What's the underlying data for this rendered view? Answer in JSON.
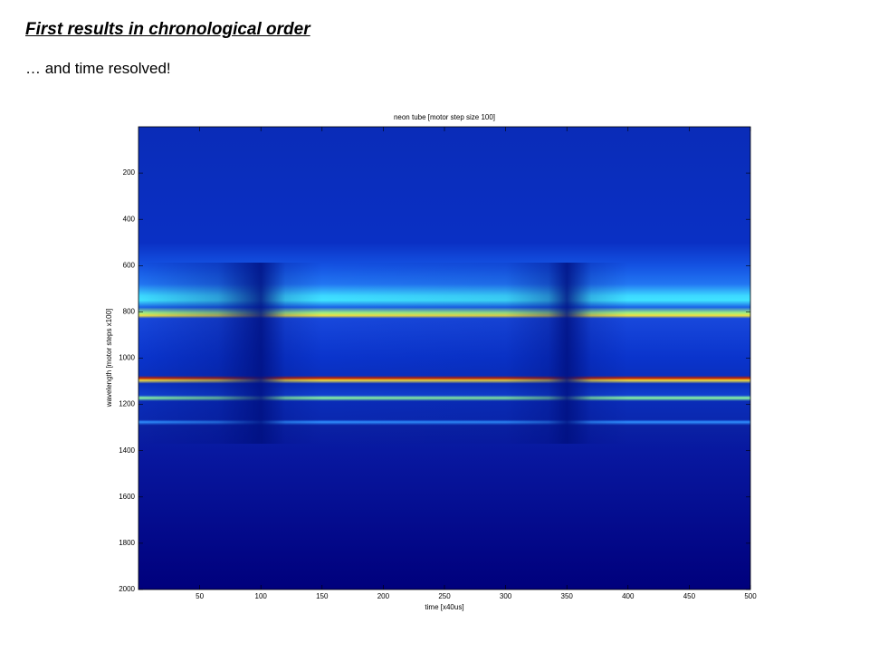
{
  "slide": {
    "title": "First results in chronological order",
    "subtitle": "… and time resolved!"
  },
  "chart_data": {
    "type": "heatmap",
    "title": "neon tube [motor step size 100]",
    "xlabel": "time [x40us]",
    "ylabel": "wavelength [motor steps x100]",
    "xlim": [
      0,
      500
    ],
    "xticks": [
      50,
      100,
      150,
      200,
      250,
      300,
      350,
      400,
      450,
      500
    ],
    "ylim": [
      0,
      2000
    ],
    "yticks": [
      200,
      400,
      600,
      800,
      1000,
      1200,
      1400,
      1600,
      1800,
      2000
    ],
    "y_reversed": true
  }
}
